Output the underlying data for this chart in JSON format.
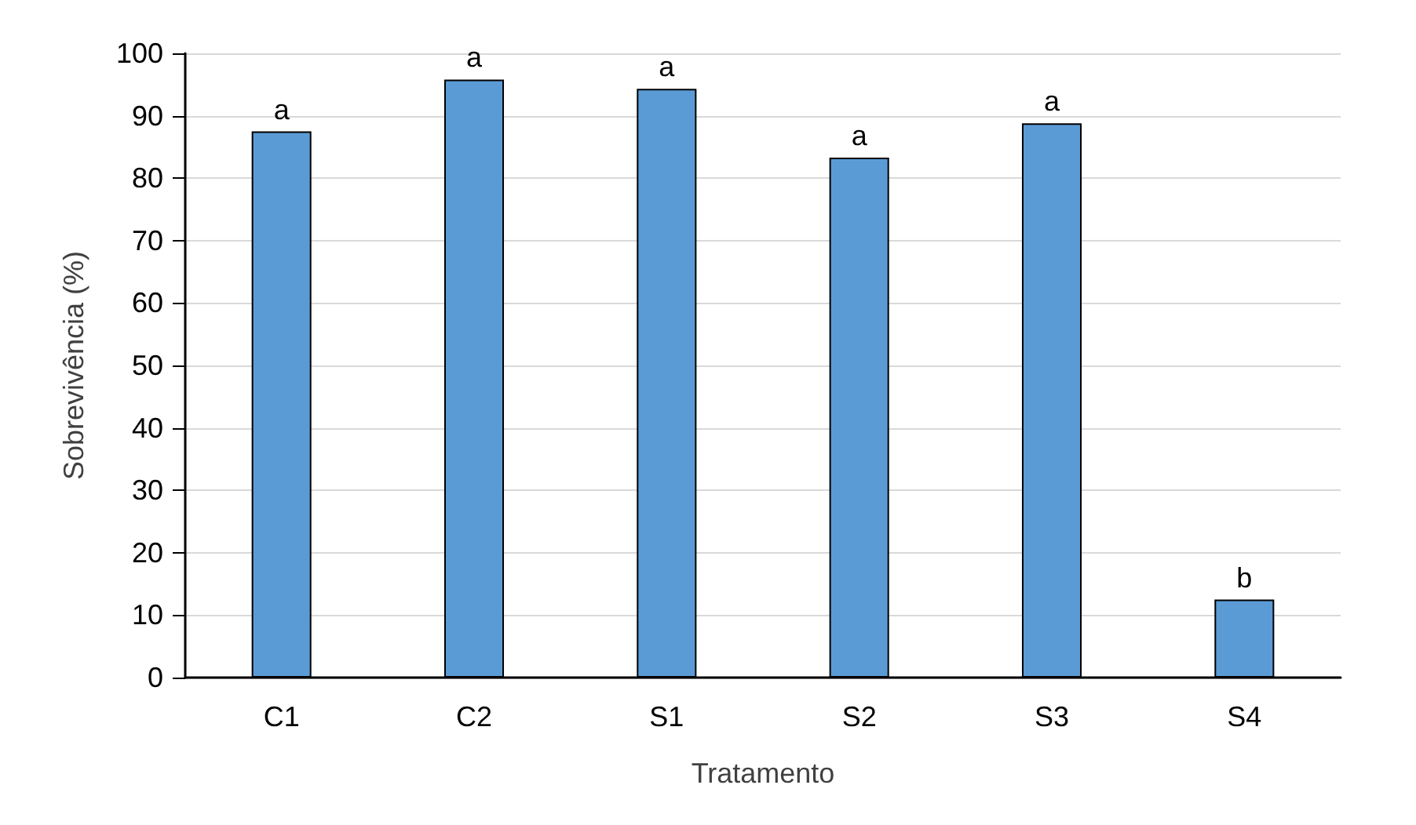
{
  "chart_data": {
    "type": "bar",
    "xlabel": "Tratamento",
    "ylabel": "Sobrevivência (%)",
    "categories": [
      "C1",
      "C2",
      "S1",
      "S2",
      "S3",
      "S4"
    ],
    "values": [
      87.5,
      95.8,
      94.3,
      83.3,
      88.8,
      12.5
    ],
    "value_labels": [
      "a",
      "a",
      "a",
      "a",
      "a",
      "b"
    ],
    "color": "#5b9bd5",
    "ylim": [
      0,
      100
    ],
    "yticks": [
      0,
      10,
      20,
      30,
      40,
      50,
      60,
      70,
      80,
      90,
      100
    ],
    "grid": "y"
  }
}
